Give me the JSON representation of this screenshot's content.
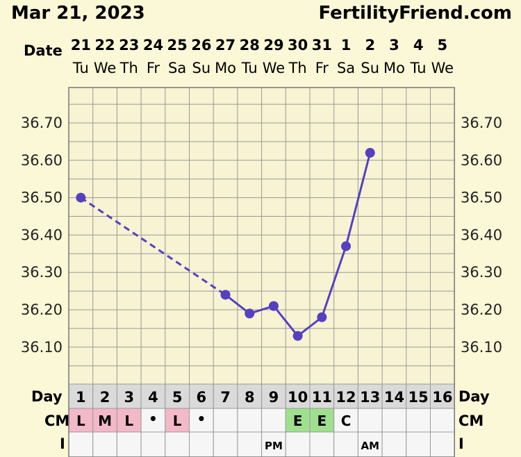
{
  "header": {
    "date": "Mar 21, 2023",
    "site": "FertilityFriend.com",
    "date_row_label": "Date"
  },
  "chart_data": {
    "type": "line",
    "title": "",
    "xlabel": "",
    "ylabel": "",
    "y_ticks": [
      "36.70",
      "36.60",
      "36.50",
      "36.40",
      "36.30",
      "36.20",
      "36.10"
    ],
    "ylim": [
      35.99,
      36.79
    ],
    "dates": [
      {
        "day": "21",
        "weekday": "Tu"
      },
      {
        "day": "22",
        "weekday": "We"
      },
      {
        "day": "23",
        "weekday": "Th"
      },
      {
        "day": "24",
        "weekday": "Fr"
      },
      {
        "day": "25",
        "weekday": "Sa"
      },
      {
        "day": "26",
        "weekday": "Su"
      },
      {
        "day": "27",
        "weekday": "Mo"
      },
      {
        "day": "28",
        "weekday": "Tu"
      },
      {
        "day": "29",
        "weekday": "We"
      },
      {
        "day": "30",
        "weekday": "Th"
      },
      {
        "day": "31",
        "weekday": "Fr"
      },
      {
        "day": "1",
        "weekday": "Sa"
      },
      {
        "day": "2",
        "weekday": "Su"
      },
      {
        "day": "3",
        "weekday": "Mo"
      },
      {
        "day": "4",
        "weekday": "Tu"
      },
      {
        "day": "5",
        "weekday": "We"
      }
    ],
    "series": [
      {
        "color": "#5540c0",
        "points": [
          {
            "cycle_day": 1,
            "temp": 36.5
          },
          {
            "cycle_day": 7,
            "temp": 36.24
          },
          {
            "cycle_day": 8,
            "temp": 36.19
          },
          {
            "cycle_day": 9,
            "temp": 36.21
          },
          {
            "cycle_day": 10,
            "temp": 36.13
          },
          {
            "cycle_day": 11,
            "temp": 36.18
          },
          {
            "cycle_day": 12,
            "temp": 36.37
          },
          {
            "cycle_day": 13,
            "temp": 36.62
          }
        ],
        "dashed_segments": [
          [
            1,
            7
          ]
        ]
      }
    ]
  },
  "rows": {
    "day_label": "Day",
    "cm_label": "CM",
    "i_label": "I",
    "cycle_days": [
      "1",
      "2",
      "3",
      "4",
      "5",
      "6",
      "7",
      "8",
      "9",
      "10",
      "11",
      "12",
      "13",
      "14",
      "15",
      "16"
    ],
    "cm": [
      {
        "text": "L",
        "type": "period"
      },
      {
        "text": "M",
        "type": "period"
      },
      {
        "text": "L",
        "type": "period"
      },
      {
        "text": "•",
        "type": "spot"
      },
      {
        "text": "L",
        "type": "period"
      },
      {
        "text": "•",
        "type": "spot"
      },
      {
        "text": "",
        "type": "none"
      },
      {
        "text": "",
        "type": "none"
      },
      {
        "text": "",
        "type": "none"
      },
      {
        "text": "E",
        "type": "eggwhite"
      },
      {
        "text": "E",
        "type": "eggwhite"
      },
      {
        "text": "C",
        "type": "none"
      },
      {
        "text": "",
        "type": "none"
      },
      {
        "text": "",
        "type": "none"
      },
      {
        "text": "",
        "type": "none"
      },
      {
        "text": "",
        "type": "none"
      }
    ],
    "intercourse": [
      "",
      "",
      "",
      "",
      "",
      "",
      "",
      "",
      "PM",
      "",
      "",
      "",
      "AM",
      "",
      "",
      ""
    ]
  },
  "colors": {
    "background": "#fbf8d7",
    "plot_background": "#f7f3d3",
    "grid": "#999999",
    "line": "#5540c0",
    "period_cell": "#f3b9c8",
    "eggwhite_cell": "#9fe08f",
    "empty_cell": "#f6f6f6",
    "day_cell": "#dadada"
  }
}
